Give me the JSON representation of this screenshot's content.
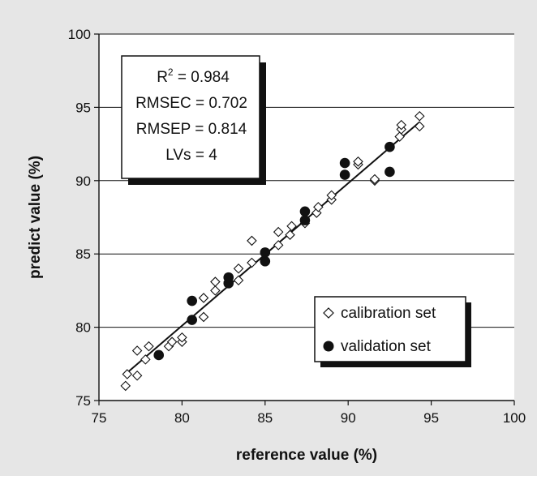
{
  "chart_data": {
    "type": "scatter",
    "title": "",
    "xlabel": "reference value (%)",
    "ylabel": "predict value (%)",
    "xlim": [
      75,
      100
    ],
    "ylim": [
      75,
      100
    ],
    "xticks": [
      "75",
      "80",
      "85",
      "90",
      "95",
      "100"
    ],
    "yticks": [
      "75",
      "80",
      "85",
      "90",
      "95",
      "100"
    ],
    "grid": "horizontal",
    "stats": {
      "r2_label": "R",
      "r2_sup": "2",
      "r2_value": " = 0.984",
      "rmsec": "RMSEC = 0.702",
      "rmsep": "RMSEP = 0.814",
      "lvs": "LVs = 4"
    },
    "legend_position": "bottom-right",
    "series": [
      {
        "name": "calibration set",
        "marker": "diamond-open",
        "color": "#ffffff",
        "points": [
          [
            76.6,
            76.0
          ],
          [
            76.7,
            76.8
          ],
          [
            77.3,
            76.7
          ],
          [
            77.3,
            78.4
          ],
          [
            77.8,
            77.8
          ],
          [
            78.0,
            78.7
          ],
          [
            79.2,
            78.7
          ],
          [
            79.4,
            79.0
          ],
          [
            80.0,
            79.0
          ],
          [
            80.0,
            79.3
          ],
          [
            81.3,
            80.7
          ],
          [
            81.3,
            82.0
          ],
          [
            82.0,
            82.5
          ],
          [
            82.0,
            83.1
          ],
          [
            82.8,
            83.1
          ],
          [
            83.4,
            83.2
          ],
          [
            83.4,
            84.0
          ],
          [
            84.2,
            84.4
          ],
          [
            84.2,
            85.9
          ],
          [
            85.0,
            85.0
          ],
          [
            85.8,
            85.6
          ],
          [
            85.8,
            86.5
          ],
          [
            86.5,
            86.3
          ],
          [
            86.6,
            86.9
          ],
          [
            87.4,
            87.1
          ],
          [
            88.1,
            87.8
          ],
          [
            88.2,
            88.2
          ],
          [
            89.0,
            88.7
          ],
          [
            89.0,
            89.0
          ],
          [
            90.6,
            91.1
          ],
          [
            90.6,
            91.3
          ],
          [
            91.6,
            90.0
          ],
          [
            91.6,
            90.1
          ],
          [
            93.1,
            93.0
          ],
          [
            93.2,
            93.5
          ],
          [
            93.2,
            93.8
          ],
          [
            94.3,
            93.7
          ],
          [
            94.3,
            94.4
          ]
        ]
      },
      {
        "name": "validation set",
        "marker": "circle-filled",
        "color": "#111111",
        "points": [
          [
            78.6,
            78.1
          ],
          [
            80.6,
            80.5
          ],
          [
            80.6,
            81.8
          ],
          [
            82.8,
            83.0
          ],
          [
            82.8,
            83.4
          ],
          [
            85.0,
            84.5
          ],
          [
            85.0,
            85.1
          ],
          [
            87.4,
            87.3
          ],
          [
            87.4,
            87.9
          ],
          [
            89.8,
            90.4
          ],
          [
            89.8,
            91.2
          ],
          [
            92.5,
            90.6
          ],
          [
            92.5,
            92.3
          ]
        ]
      }
    ],
    "fit_line": {
      "x": [
        76.7,
        94.3
      ],
      "y": [
        76.9,
        94.0
      ]
    }
  },
  "colors": {
    "plot_background": "#ffffff",
    "outer_background": "#e6e6e6",
    "axis": "#111111",
    "shadow": "#111111"
  }
}
